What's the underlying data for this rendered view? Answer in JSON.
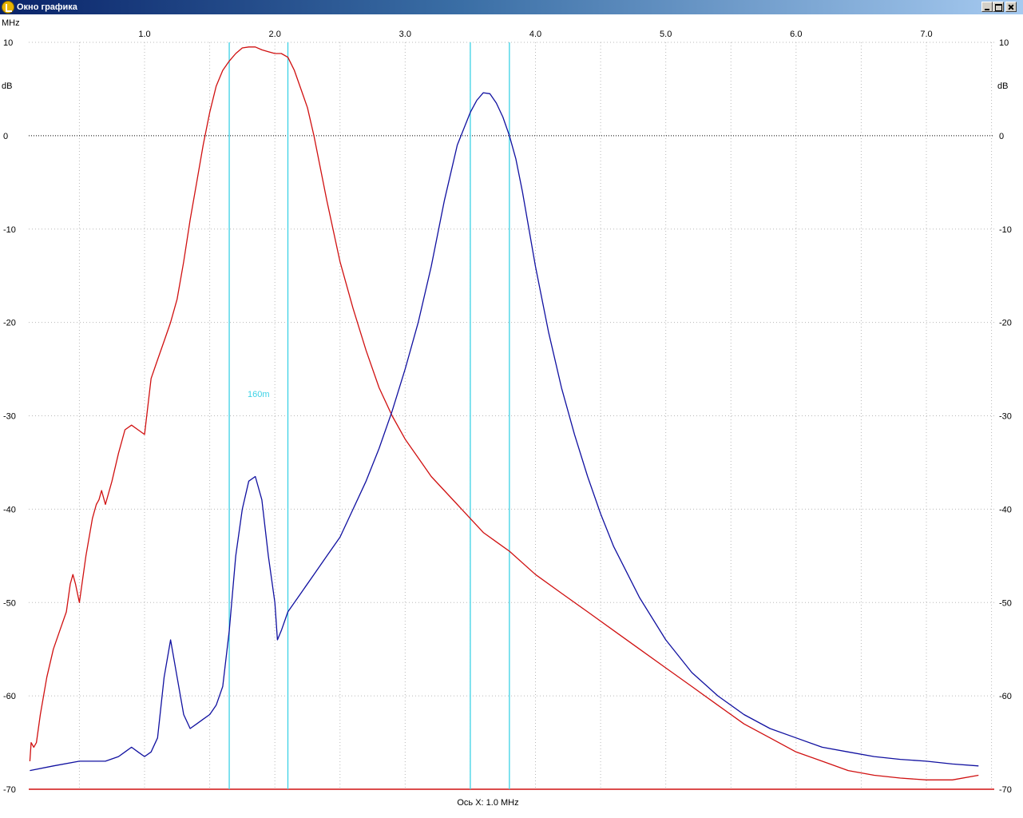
{
  "window": {
    "title": "Окно графика",
    "icon": "app-logo-icon",
    "buttons": [
      "minimize-icon",
      "maximize-icon",
      "close-icon"
    ]
  },
  "chart_data": {
    "type": "line",
    "title": "",
    "x_unit_label": "MHz",
    "y_unit_label": "dB",
    "xlabel": "Ось X: 1.0 MHz",
    "xlim": [
      0.1,
      7.5
    ],
    "ylim": [
      -70,
      10
    ],
    "x_ticks": [
      1.0,
      2.0,
      3.0,
      4.0,
      5.0,
      6.0,
      7.0
    ],
    "x_tick_labels": [
      "1.0",
      "2.0",
      "3.0",
      "4.0",
      "5.0",
      "6.0",
      "7.0"
    ],
    "y_ticks": [
      10,
      0,
      -10,
      -20,
      -30,
      -40,
      -50,
      -60,
      -70
    ],
    "y_tick_labels": [
      "10",
      "0",
      "-10",
      "-20",
      "-30",
      "-40",
      "-50",
      "-60",
      "-70"
    ],
    "grid": "dotted vertical and horizontal",
    "zero_line": true,
    "band_markers": [
      {
        "x_start": 1.65,
        "x_end": 2.1,
        "label": "160m"
      },
      {
        "x_start": 3.5,
        "x_end": 3.8,
        "label": ""
      }
    ],
    "colors": {
      "red_series": "#d01010",
      "blue_series": "#1010a0",
      "marker": "#3cd2e6",
      "grid": "#b8b8b8"
    },
    "series": [
      {
        "color": "#d01010",
        "x": [
          0.12,
          0.13,
          0.15,
          0.17,
          0.2,
          0.25,
          0.3,
          0.35,
          0.4,
          0.43,
          0.45,
          0.47,
          0.5,
          0.55,
          0.6,
          0.63,
          0.65,
          0.67,
          0.7,
          0.75,
          0.8,
          0.85,
          0.9,
          0.95,
          1.0,
          1.05,
          1.1,
          1.15,
          1.2,
          1.25,
          1.3,
          1.35,
          1.4,
          1.45,
          1.5,
          1.55,
          1.6,
          1.65,
          1.7,
          1.75,
          1.8,
          1.85,
          1.9,
          1.95,
          2.0,
          2.05,
          2.1,
          2.15,
          2.2,
          2.25,
          2.3,
          2.4,
          2.5,
          2.6,
          2.7,
          2.8,
          2.9,
          3.0,
          3.1,
          3.2,
          3.4,
          3.5,
          3.6,
          3.7,
          3.8,
          4.0,
          4.2,
          4.4,
          4.6,
          4.8,
          5.0,
          5.2,
          5.4,
          5.6,
          5.8,
          6.0,
          6.2,
          6.4,
          6.6,
          6.8,
          7.0,
          7.2,
          7.4
        ],
        "y": [
          -67,
          -65,
          -65.5,
          -65,
          -62,
          -58,
          -55,
          -53,
          -51,
          -48,
          -47,
          -48,
          -50,
          -45,
          -41,
          -39.5,
          -39,
          -38,
          -39.5,
          -37,
          -34,
          -31.5,
          -31,
          -31.5,
          -32,
          -26,
          -24,
          -22,
          -20,
          -17.5,
          -13.5,
          -9,
          -5,
          -1,
          2.5,
          5.3,
          7,
          8,
          8.8,
          9.4,
          9.5,
          9.5,
          9.2,
          9,
          8.8,
          8.8,
          8.4,
          7,
          5,
          3,
          0,
          -7,
          -13.5,
          -18.5,
          -23,
          -27,
          -30,
          -32.5,
          -34.5,
          -36.5,
          -39.5,
          -41,
          -42.5,
          -43.5,
          -44.5,
          -47,
          -49,
          -51,
          -53,
          -55,
          -57,
          -59,
          -61,
          -63,
          -64.5,
          -66,
          -67,
          -68,
          -68.5,
          -68.8,
          -69,
          -69,
          -68.5
        ]
      },
      {
        "color": "#1010a0",
        "x": [
          0.12,
          0.3,
          0.5,
          0.7,
          0.8,
          0.85,
          0.9,
          0.95,
          1.0,
          1.05,
          1.1,
          1.15,
          1.2,
          1.25,
          1.3,
          1.35,
          1.4,
          1.45,
          1.5,
          1.55,
          1.6,
          1.65,
          1.7,
          1.75,
          1.8,
          1.85,
          1.9,
          1.95,
          2.0,
          2.02,
          2.05,
          2.1,
          2.2,
          2.3,
          2.4,
          2.5,
          2.6,
          2.7,
          2.8,
          2.9,
          3.0,
          3.1,
          3.2,
          3.3,
          3.4,
          3.5,
          3.55,
          3.6,
          3.65,
          3.7,
          3.75,
          3.8,
          3.85,
          3.9,
          4.0,
          4.1,
          4.2,
          4.3,
          4.4,
          4.5,
          4.6,
          4.8,
          5.0,
          5.2,
          5.4,
          5.6,
          5.8,
          6.0,
          6.2,
          6.4,
          6.6,
          6.8,
          7.0,
          7.2,
          7.4
        ],
        "y": [
          -68,
          -67.5,
          -67,
          -67,
          -66.5,
          -66,
          -65.5,
          -66,
          -66.5,
          -66,
          -64.5,
          -58,
          -54,
          -58,
          -62,
          -63.5,
          -63,
          -62.5,
          -62,
          -61,
          -59,
          -53,
          -45,
          -40,
          -37,
          -36.5,
          -39,
          -45,
          -50,
          -54,
          -53,
          -51,
          -49,
          -47,
          -45,
          -43,
          -40,
          -37,
          -33.5,
          -29.5,
          -25,
          -20,
          -14,
          -7,
          -1,
          2.5,
          3.8,
          4.6,
          4.5,
          3.5,
          2,
          0,
          -2.5,
          -6,
          -14,
          -21,
          -27,
          -32,
          -36.5,
          -40.5,
          -44,
          -49.5,
          -54,
          -57.5,
          -60,
          -62,
          -63.5,
          -64.5,
          -65.5,
          -66,
          -66.5,
          -66.8,
          -67,
          -67.3,
          -67.5
        ]
      }
    ]
  }
}
